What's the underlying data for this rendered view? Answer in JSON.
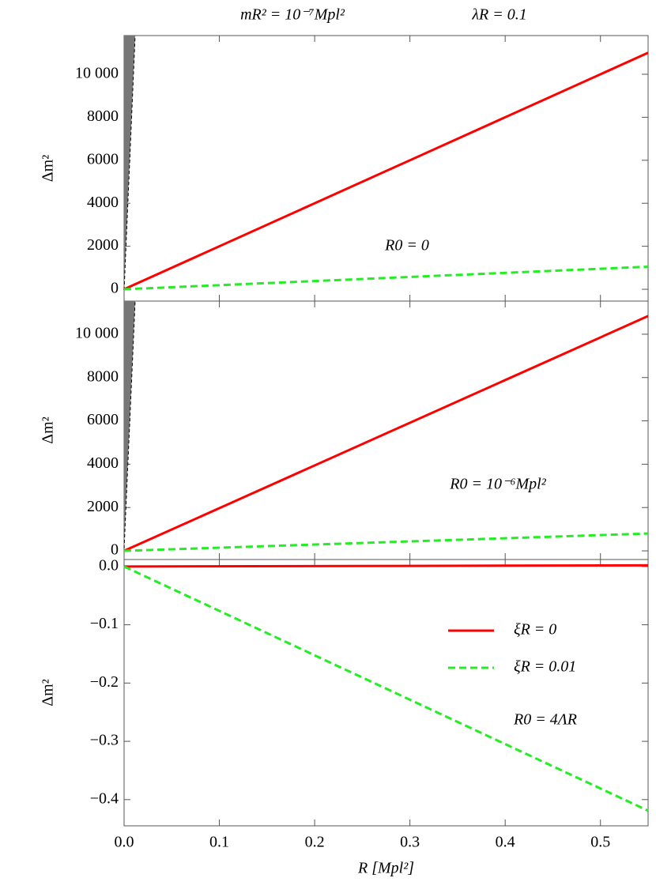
{
  "chart_data": [
    {
      "type": "line",
      "title": "mR² = 10⁻⁷Mpl²",
      "subtitle": "λR = 0.1",
      "ylabel": "Δm²",
      "annotation": "R0 = 0",
      "x": [
        0,
        0.55
      ],
      "xlim": [
        0,
        0.55
      ],
      "ylim": [
        -550,
        11800
      ],
      "yticks": [
        0,
        2000,
        4000,
        6000,
        8000,
        {
          "value": 10000,
          "label": "10 000"
        }
      ],
      "series": [
        {
          "color": "#ff0000",
          "style": "solid",
          "values": [
            0,
            11000
          ]
        },
        {
          "color": "#22ee22",
          "style": "dashed",
          "values": [
            0,
            1050
          ]
        }
      ]
    },
    {
      "type": "line",
      "ylabel": "Δm²",
      "annotation": "R0 = 10⁻⁶Mpl²",
      "x": [
        0,
        0.55
      ],
      "xlim": [
        0,
        0.55
      ],
      "ylim": [
        -400,
        11530
      ],
      "yticks": [
        0,
        2000,
        4000,
        6000,
        8000,
        {
          "value": 10000,
          "label": "10 000"
        }
      ],
      "series": [
        {
          "color": "#ff0000",
          "style": "solid",
          "values": [
            0,
            10840
          ]
        },
        {
          "color": "#22ee22",
          "style": "dashed",
          "values": [
            0,
            800
          ]
        }
      ]
    },
    {
      "type": "line",
      "ylabel": "Δm²",
      "xlabel": "R  [Mpl²]",
      "annotation": "R0 = 4ΛR",
      "x": [
        0,
        0.55
      ],
      "xlim": [
        0,
        0.55
      ],
      "ylim": [
        -0.445,
        0.012
      ],
      "xticks": [
        {
          "value": 0,
          "label": "0.0"
        },
        0.1,
        0.2,
        0.3,
        0.4,
        0.5
      ],
      "yticks": [
        {
          "value": 0,
          "label": "0.0"
        },
        {
          "value": -0.1,
          "label": "−0.1"
        },
        {
          "value": -0.2,
          "label": "−0.2"
        },
        {
          "value": -0.3,
          "label": "−0.3"
        },
        {
          "value": -0.4,
          "label": "−0.4"
        }
      ],
      "series": [
        {
          "name": "ξR = 0",
          "color": "#ff0000",
          "style": "solid",
          "values": [
            0,
            0.002
          ]
        },
        {
          "name": "ξR = 0.01",
          "color": "#22ee22",
          "style": "dashed",
          "values": [
            0,
            -0.419
          ]
        }
      ]
    }
  ]
}
